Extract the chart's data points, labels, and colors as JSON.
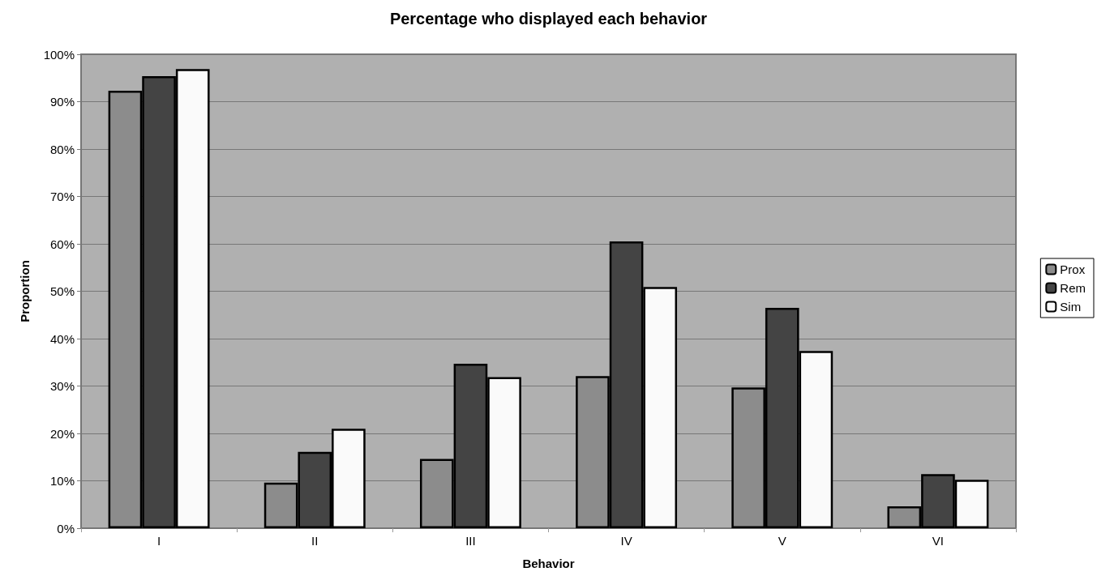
{
  "chart_data": {
    "type": "bar",
    "title": "Percentage who displayed each behavior",
    "xlabel": "Behavior",
    "ylabel": "Proportion",
    "categories": [
      "I",
      "II",
      "III",
      "IV",
      "V",
      "VI"
    ],
    "series": [
      {
        "name": "Prox",
        "color": "#8c8c8c",
        "values": [
          92.3,
          9.6,
          14.6,
          32.1,
          29.7,
          4.6
        ]
      },
      {
        "name": "Rem",
        "color": "#444444",
        "values": [
          95.4,
          16.1,
          34.7,
          60.5,
          46.5,
          11.4
        ]
      },
      {
        "name": "Sim",
        "color": "#fafafa",
        "values": [
          96.9,
          21.0,
          31.9,
          50.9,
          37.4,
          10.2
        ]
      }
    ],
    "ylim": [
      0,
      100
    ],
    "yticks": [
      {
        "value": 0,
        "label": "0%"
      },
      {
        "value": 10,
        "label": "10%"
      },
      {
        "value": 20,
        "label": "20%"
      },
      {
        "value": 30,
        "label": "30%"
      },
      {
        "value": 40,
        "label": "40%"
      },
      {
        "value": 50,
        "label": "50%"
      },
      {
        "value": 60,
        "label": "60%"
      },
      {
        "value": 70,
        "label": "70%"
      },
      {
        "value": 80,
        "label": "80%"
      },
      {
        "value": 90,
        "label": "90%"
      },
      {
        "value": 100,
        "label": "100%"
      }
    ],
    "grid": "y",
    "legend": "right"
  }
}
